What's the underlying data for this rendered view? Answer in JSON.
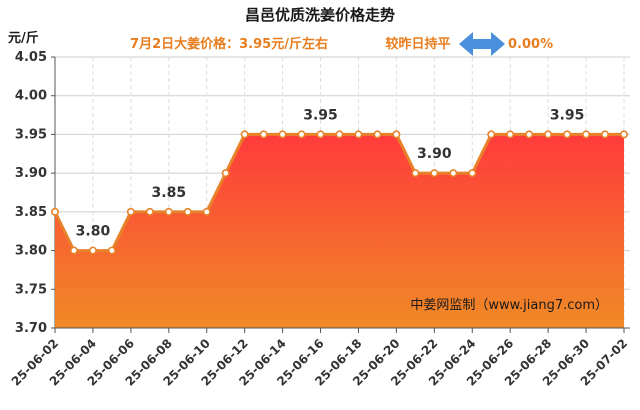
{
  "chart_data": {
    "type": "area",
    "title": "昌邑优质洗姜价格走势",
    "subtitle": {
      "price_text": "7月2日大姜价格：3.95元/斤左右",
      "compare_text": "较昨日持平",
      "change_text": "0.00%"
    },
    "unit_label": "元/斤",
    "ylim": [
      3.7,
      4.05
    ],
    "yticks": [
      "3.70",
      "3.75",
      "3.80",
      "3.85",
      "3.90",
      "3.95",
      "4.00",
      "4.05"
    ],
    "x": [
      "25-06-02",
      "25-06-03",
      "25-06-04",
      "25-06-05",
      "25-06-06",
      "25-06-07",
      "25-06-08",
      "25-06-09",
      "25-06-10",
      "25-06-11",
      "25-06-12",
      "25-06-13",
      "25-06-14",
      "25-06-15",
      "25-06-16",
      "25-06-17",
      "25-06-18",
      "25-06-19",
      "25-06-20",
      "25-06-21",
      "25-06-22",
      "25-06-23",
      "25-06-24",
      "25-06-25",
      "25-06-26",
      "25-06-27",
      "25-06-28",
      "25-06-29",
      "25-06-30",
      "25-07-01",
      "25-07-02"
    ],
    "xtick_labels": [
      "25-06-02",
      "25-06-04",
      "25-06-06",
      "25-06-08",
      "25-06-10",
      "25-06-12",
      "25-06-14",
      "25-06-16",
      "25-06-18",
      "25-06-20",
      "25-06-22",
      "25-06-24",
      "25-06-26",
      "25-06-28",
      "25-06-30",
      "25-07-02"
    ],
    "values": [
      3.85,
      3.8,
      3.8,
      3.8,
      3.85,
      3.85,
      3.85,
      3.85,
      3.85,
      3.9,
      3.95,
      3.95,
      3.95,
      3.95,
      3.95,
      3.95,
      3.95,
      3.95,
      3.95,
      3.9,
      3.9,
      3.9,
      3.9,
      3.95,
      3.95,
      3.95,
      3.95,
      3.95,
      3.95,
      3.95,
      3.95
    ],
    "data_labels": [
      {
        "index": 2,
        "text": "3.80"
      },
      {
        "index": 6,
        "text": "3.85"
      },
      {
        "index": 14,
        "text": "3.95"
      },
      {
        "index": 20,
        "text": "3.90"
      },
      {
        "index": 27,
        "text": "3.95"
      }
    ],
    "line_color": "#e8822a",
    "fill_top_color": "#ff3b3b",
    "fill_bottom_color": "#f08a26",
    "arrow_color": "#4a8fdc",
    "grid": true,
    "watermark": "中姜网监制（www.jiang7.com）"
  }
}
